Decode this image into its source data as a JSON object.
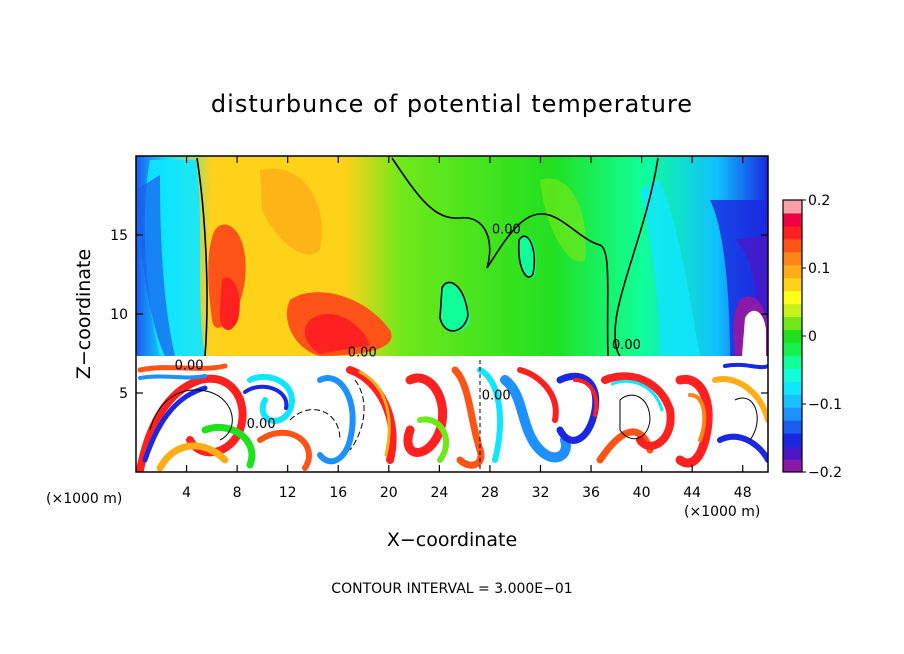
{
  "chart_data": {
    "type": "heatmap",
    "title": "disturbunce of potential temperature",
    "xlabel": "X−coordinate",
    "ylabel": "Z−coordinate",
    "x_unit_left": "(×1000 m)",
    "x_unit_right": "(×1000 m)",
    "footer": "CONTOUR INTERVAL = 3.000E−01",
    "xlim": [
      0,
      50
    ],
    "ylim": [
      0,
      20
    ],
    "x_ticks": [
      {
        "value": 4,
        "label": "4"
      },
      {
        "value": 8,
        "label": "8"
      },
      {
        "value": 12,
        "label": "12"
      },
      {
        "value": 16,
        "label": "16"
      },
      {
        "value": 20,
        "label": "20"
      },
      {
        "value": 24,
        "label": "24"
      },
      {
        "value": 28,
        "label": "28"
      },
      {
        "value": 32,
        "label": "32"
      },
      {
        "value": 36,
        "label": "36"
      },
      {
        "value": 40,
        "label": "40"
      },
      {
        "value": 44,
        "label": "44"
      },
      {
        "value": 48,
        "label": "48"
      }
    ],
    "y_ticks": [
      {
        "value": 5,
        "label": "5"
      },
      {
        "value": 10,
        "label": "10"
      },
      {
        "value": 15,
        "label": "15"
      }
    ],
    "colorbar": {
      "min": -0.2,
      "max": 0.2,
      "ticks": [
        {
          "value": 0.2,
          "label": "0.2"
        },
        {
          "value": 0.1,
          "label": "0.1"
        },
        {
          "value": 0,
          "label": "0"
        },
        {
          "value": -0.1,
          "label": "−0.1"
        },
        {
          "value": -0.2,
          "label": "−0.2"
        }
      ],
      "colors": [
        "#8a1aa8",
        "#4a18c8",
        "#1a28e0",
        "#1a5cf0",
        "#1e90ff",
        "#1ac0ff",
        "#10e6ff",
        "#10ffd8",
        "#10ff98",
        "#18f050",
        "#20e020",
        "#70e81a",
        "#c8f01a",
        "#ffff1a",
        "#ffd21a",
        "#ffae18",
        "#ff8418",
        "#ff5418",
        "#ff2020",
        "#f00040",
        "#ffa0a8"
      ]
    },
    "contour_labels": [
      {
        "x": 29.3,
        "y": 15.1,
        "text": "0.00"
      },
      {
        "x": 38.8,
        "y": 7.8,
        "text": "0.00"
      },
      {
        "x": 17.9,
        "y": 7.3,
        "text": "0.00"
      },
      {
        "x": 4.2,
        "y": 6.5,
        "text": "0.00"
      },
      {
        "x": 9.9,
        "y": 2.8,
        "text": "0.00"
      },
      {
        "x": 28.5,
        "y": 4.6,
        "text": "0.00"
      }
    ],
    "field_regions": {
      "upper_layer_z": [
        7.3,
        20
      ],
      "lower_layer_z": [
        0,
        7.3
      ],
      "upper_pattern": "warm anomaly (+0.05 to +0.16) over x 6–22 km peaking near x 8–10 km and x 16–18 km at z 9–11 km; near-zero (green) over x 22–38 km; cold anomaly (−0.05 to −0.2) near lateral boundaries x < 6 km and x > 40 km, minimum near x 47 km z 10 km",
      "lower_pattern": "turbulent mixed layer with alternating strong positive (>0.2) and negative (<−0.2) filaments below z 7.3 km"
    }
  }
}
